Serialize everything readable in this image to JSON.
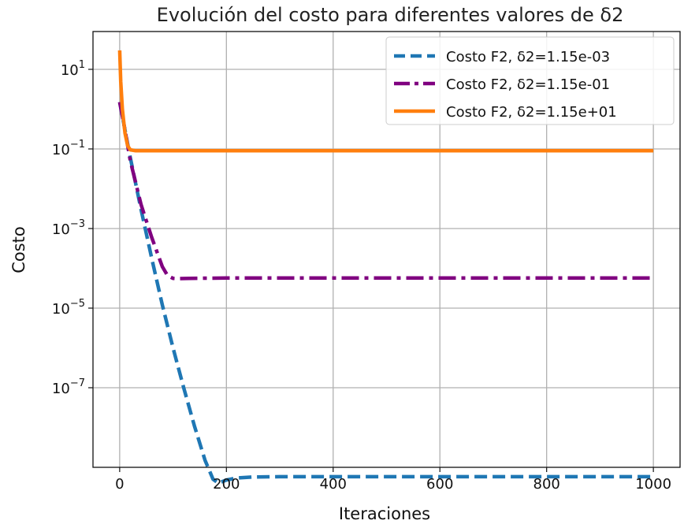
{
  "chart_data": {
    "type": "line",
    "title": "Evolución del costo para diferentes valores de δ2",
    "xlabel": "Iteraciones",
    "ylabel": "Costo",
    "xscale": "linear",
    "yscale": "log",
    "xlim": [
      -50,
      1050
    ],
    "ylim_exp": [
      -9.0,
      1.95
    ],
    "xticks": [
      0,
      200,
      400,
      600,
      800,
      1000
    ],
    "xtick_labels": [
      "0",
      "200",
      "400",
      "600",
      "800",
      "1000"
    ],
    "yticks_exp": [
      1,
      -1,
      -3,
      -5,
      -7
    ],
    "ytick_labels": [
      {
        "base": "10",
        "exp": "1"
      },
      {
        "base": "10",
        "exp": "−1"
      },
      {
        "base": "10",
        "exp": "−3"
      },
      {
        "base": "10",
        "exp": "−5"
      },
      {
        "base": "10",
        "exp": "−7"
      }
    ],
    "grid": true,
    "legend_position": "top-right",
    "series": [
      {
        "name": "Costo F2, δ2=1.15e-03",
        "color": "#1f77b4",
        "dash": "dashed",
        "x": [
          0,
          10,
          20,
          40,
          60,
          80,
          100,
          120,
          140,
          160,
          175,
          185,
          200,
          220,
          250,
          300,
          400,
          600,
          800,
          1000
        ],
        "y": [
          1.5,
          0.3,
          0.06,
          0.003,
          0.00018,
          1.2e-05,
          1e-06,
          1e-07,
          1.1e-08,
          1.5e-09,
          5e-10,
          4e-10,
          4.8e-10,
          5.4e-10,
          5.7e-10,
          5.8e-10,
          5.8e-10,
          5.8e-10,
          5.8e-10,
          5.8e-10
        ]
      },
      {
        "name": "Costo F2, δ2=1.15e-01",
        "color": "#800080",
        "dash": "dashdot",
        "x": [
          0,
          10,
          20,
          40,
          60,
          80,
          90,
          100,
          110,
          130,
          200,
          400,
          600,
          800,
          1000
        ],
        "y": [
          1.5,
          0.3,
          0.05,
          0.004,
          0.0006,
          0.00011,
          6.5e-05,
          5.6e-05,
          5.5e-05,
          5.6e-05,
          5.7e-05,
          5.7e-05,
          5.7e-05,
          5.7e-05,
          5.7e-05
        ]
      },
      {
        "name": "Costo F2, δ2=1.15e+01",
        "color": "#ff7f0e",
        "dash": "solid",
        "x": [
          0,
          2,
          5,
          10,
          15,
          20,
          30,
          50,
          100,
          200,
          400,
          600,
          800,
          1000
        ],
        "y": [
          30,
          5,
          1.0,
          0.25,
          0.12,
          0.095,
          0.09,
          0.09,
          0.09,
          0.09,
          0.09,
          0.09,
          0.09,
          0.09
        ]
      }
    ]
  }
}
